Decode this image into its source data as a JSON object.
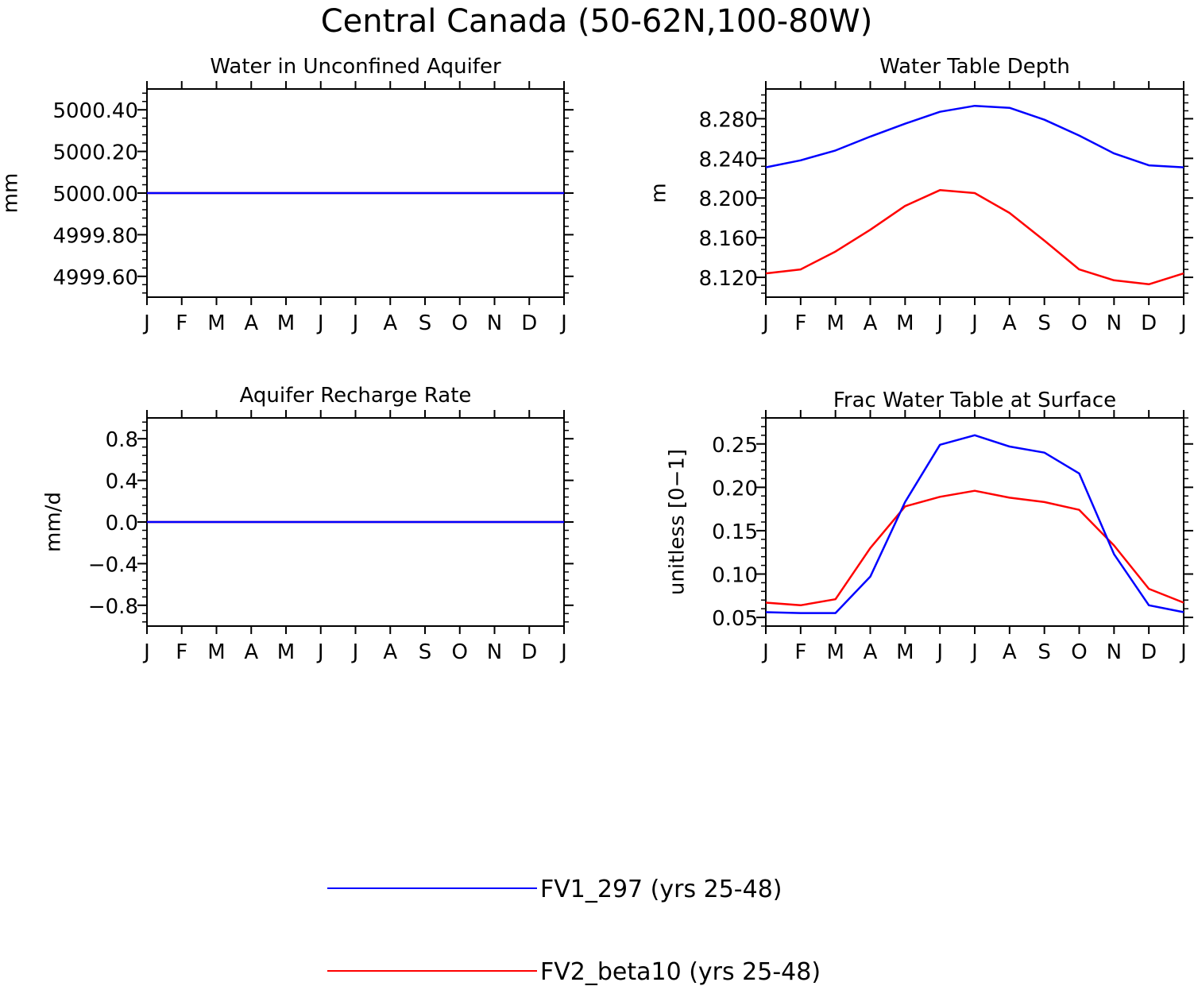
{
  "figure_title": "Central Canada (50-62N,100-80W)",
  "colors": {
    "series1": "#0000ff",
    "series2": "#ff0000",
    "axis": "#000000"
  },
  "legend": [
    {
      "label": "FV1_297 (yrs 25-48)",
      "color": "#0000ff"
    },
    {
      "label": "FV2_beta10 (yrs 25-48)",
      "color": "#ff0000"
    }
  ],
  "chart_data": [
    {
      "type": "line",
      "title": "Water in Unconfined Aquifer",
      "xlabel": "",
      "ylabel": "mm",
      "categories": [
        "J",
        "F",
        "M",
        "A",
        "M",
        "J",
        "J",
        "A",
        "S",
        "O",
        "N",
        "D",
        "J"
      ],
      "ylim": [
        4999.5,
        5000.5
      ],
      "yticks": [
        4999.6,
        4999.8,
        5000.0,
        5000.2,
        5000.4
      ],
      "ytick_labels": [
        "4999.60",
        "4999.80",
        "5000.00",
        "5000.20",
        "5000.40"
      ],
      "series": [
        {
          "name": "FV1_297 (yrs 25-48)",
          "values": [
            5000,
            5000,
            5000,
            5000,
            5000,
            5000,
            5000,
            5000,
            5000,
            5000,
            5000,
            5000,
            5000
          ]
        },
        {
          "name": "FV2_beta10 (yrs 25-48)",
          "values": [
            5000,
            5000,
            5000,
            5000,
            5000,
            5000,
            5000,
            5000,
            5000,
            5000,
            5000,
            5000,
            5000
          ]
        }
      ]
    },
    {
      "type": "line",
      "title": "Water Table Depth",
      "xlabel": "",
      "ylabel": "m",
      "categories": [
        "J",
        "F",
        "M",
        "A",
        "M",
        "J",
        "J",
        "A",
        "S",
        "O",
        "N",
        "D",
        "J"
      ],
      "ylim": [
        8.1,
        8.31
      ],
      "yticks": [
        8.12,
        8.16,
        8.2,
        8.24,
        8.28
      ],
      "ytick_labels": [
        "8.120",
        "8.160",
        "8.200",
        "8.240",
        "8.280"
      ],
      "series": [
        {
          "name": "FV1_297 (yrs 25-48)",
          "values": [
            8.231,
            8.238,
            8.248,
            8.262,
            8.275,
            8.287,
            8.293,
            8.291,
            8.279,
            8.263,
            8.245,
            8.233,
            8.231
          ]
        },
        {
          "name": "FV2_beta10 (yrs 25-48)",
          "values": [
            8.124,
            8.128,
            8.146,
            8.168,
            8.192,
            8.208,
            8.205,
            8.185,
            8.157,
            8.128,
            8.117,
            8.113,
            8.124
          ]
        }
      ]
    },
    {
      "type": "line",
      "title": "Aquifer Recharge Rate",
      "xlabel": "",
      "ylabel": "mm/d",
      "categories": [
        "J",
        "F",
        "M",
        "A",
        "M",
        "J",
        "J",
        "A",
        "S",
        "O",
        "N",
        "D",
        "J"
      ],
      "ylim": [
        -1.0,
        1.0
      ],
      "yticks": [
        -0.8,
        -0.4,
        0.0,
        0.4,
        0.8
      ],
      "ytick_labels": [
        "−0.8",
        "−0.4",
        "0.0",
        "0.4",
        "0.8"
      ],
      "series": [
        {
          "name": "FV1_297 (yrs 25-48)",
          "values": [
            0,
            0,
            0,
            0,
            0,
            0,
            0,
            0,
            0,
            0,
            0,
            0,
            0
          ]
        },
        {
          "name": "FV2_beta10 (yrs 25-48)",
          "values": [
            0,
            0,
            0,
            0,
            0,
            0,
            0,
            0,
            0,
            0,
            0,
            0,
            0
          ]
        }
      ]
    },
    {
      "type": "line",
      "title": "Frac Water Table at Surface",
      "xlabel": "",
      "ylabel": "unitless [0−1]",
      "categories": [
        "J",
        "F",
        "M",
        "A",
        "M",
        "J",
        "J",
        "A",
        "S",
        "O",
        "N",
        "D",
        "J"
      ],
      "ylim": [
        0.04,
        0.28
      ],
      "yticks": [
        0.05,
        0.1,
        0.15,
        0.2,
        0.25
      ],
      "ytick_labels": [
        "0.05",
        "0.10",
        "0.15",
        "0.20",
        "0.25"
      ],
      "series": [
        {
          "name": "FV1_297 (yrs 25-48)",
          "values": [
            0.056,
            0.055,
            0.055,
            0.097,
            0.183,
            0.249,
            0.26,
            0.247,
            0.24,
            0.216,
            0.123,
            0.064,
            0.056
          ]
        },
        {
          "name": "FV2_beta10 (yrs 25-48)",
          "values": [
            0.067,
            0.064,
            0.071,
            0.13,
            0.178,
            0.189,
            0.196,
            0.188,
            0.183,
            0.174,
            0.133,
            0.083,
            0.067
          ]
        }
      ]
    }
  ]
}
